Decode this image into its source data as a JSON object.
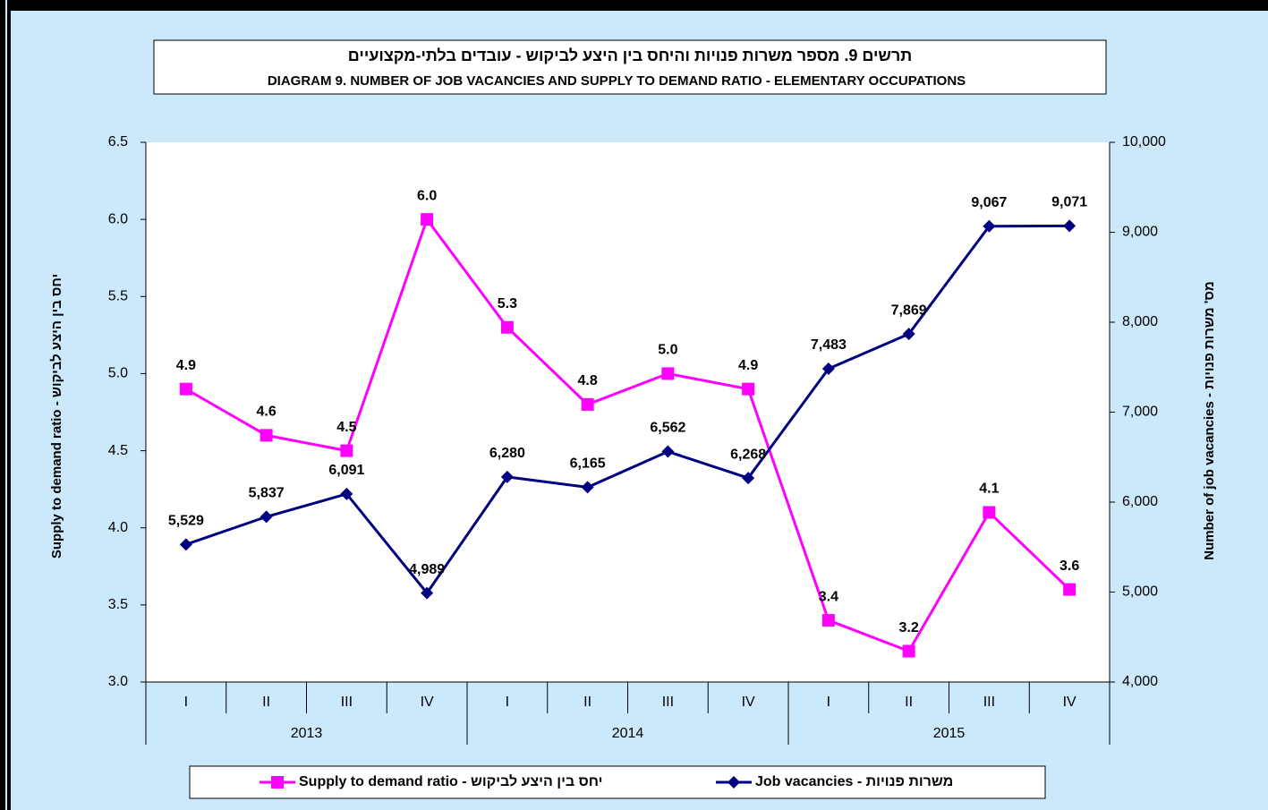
{
  "chart_data": {
    "type": "line",
    "title": "תרשים 9. מספר משרות פנויות והיחס בין היצע לביקוש - עובדים בלתי-מקצועיים",
    "subtitle": "DIAGRAM 9. NUMBER OF JOB VACANCIES AND SUPPLY TO DEMAND RATIO - ELEMENTARY OCCUPATIONS",
    "y_label": "Supply to demand ratio - יחס בין היצע לביקוש",
    "y2_label": "Number of job vacancies - מס' משרות פנויות",
    "categories": [
      "I",
      "II",
      "III",
      "IV",
      "I",
      "II",
      "III",
      "IV",
      "I",
      "II",
      "III",
      "IV"
    ],
    "category_groups": [
      "2013",
      "2014",
      "2015"
    ],
    "ylim": [
      3,
      6.5
    ],
    "yticks": [
      {
        "value": 3,
        "label": "3.0"
      },
      {
        "value": 3.5,
        "label": "3.5"
      },
      {
        "value": 4,
        "label": "4.0"
      },
      {
        "value": 4.5,
        "label": "4.5"
      },
      {
        "value": 5,
        "label": "5.0"
      },
      {
        "value": 5.5,
        "label": "5.5"
      },
      {
        "value": 6,
        "label": "6.0"
      },
      {
        "value": 6.5,
        "label": "6.5"
      }
    ],
    "y2lim": [
      4000,
      10000
    ],
    "y2ticks": [
      {
        "value": 4000,
        "label": "4,000"
      },
      {
        "value": 5000,
        "label": "5,000"
      },
      {
        "value": 6000,
        "label": "6,000"
      },
      {
        "value": 7000,
        "label": "7,000"
      },
      {
        "value": 8000,
        "label": "8,000"
      },
      {
        "value": 9000,
        "label": "9,000"
      },
      {
        "value": 10000,
        "label": "10,000"
      }
    ],
    "legend": "bottom",
    "series": [
      {
        "name": "Supply to demand ratio - יחס בין היצע לביקוש",
        "color": "#ff00ff",
        "marker": "square",
        "axis": "y",
        "values": [
          4.9,
          4.6,
          4.5,
          6.0,
          5.3,
          4.8,
          5.0,
          4.9,
          3.4,
          3.2,
          4.1,
          3.6
        ],
        "value_labels": [
          "4.9",
          "4.6",
          "4.5",
          "6.0",
          "5.3",
          "4.8",
          "5.0",
          "4.9",
          "3.4",
          "3.2",
          "4.1",
          "3.6"
        ]
      },
      {
        "name": "Job vacancies - משרות פנויות",
        "color": "#000080",
        "marker": "diamond",
        "axis": "y2",
        "values": [
          5529,
          5837,
          6091,
          4989,
          6280,
          6165,
          6562,
          6268,
          7483,
          7869,
          9067,
          9071
        ],
        "value_labels": [
          "5,529",
          "5,837",
          "6,091",
          "4,989",
          "6,280",
          "6,165",
          "6,562",
          "6,268",
          "7,483",
          "7,869",
          "9,067",
          "9,071"
        ]
      }
    ]
  }
}
